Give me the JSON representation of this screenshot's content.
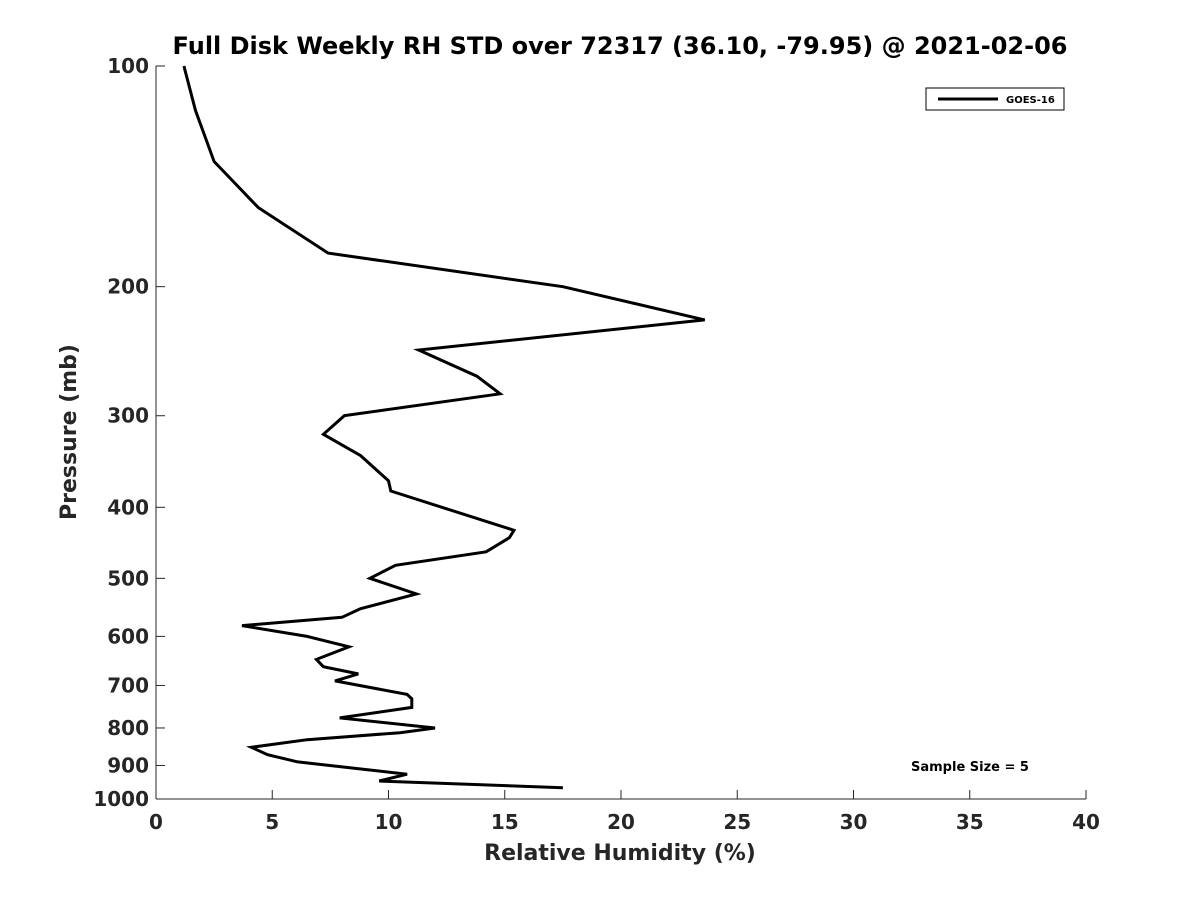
{
  "chart_data": {
    "type": "line",
    "title": "Full Disk Weekly RH STD over 72317 (36.10, -79.95) @ 2021-02-06",
    "xlabel": "Relative Humidity (%)",
    "ylabel": "Pressure (mb)",
    "xlim": [
      0,
      40
    ],
    "ylim": [
      100,
      1000
    ],
    "yscale": "log",
    "y_reversed": true,
    "xticks": [
      "0",
      "5",
      "10",
      "15",
      "20",
      "25",
      "30",
      "35",
      "40"
    ],
    "yticks": [
      "100",
      "200",
      "300",
      "400",
      "500",
      "600",
      "700",
      "800",
      "900",
      "1000"
    ],
    "grid": false,
    "legend_position": "top-right",
    "annotation": "Sample Size = 5",
    "series": [
      {
        "name": "GOES-16",
        "color": "#000000",
        "x": [
          1.2,
          1.7,
          2.5,
          4.4,
          7.4,
          17.5,
          23.6,
          11.3,
          13.8,
          14.8,
          8.1,
          7.2,
          8.8,
          10.0,
          10.1,
          15.4,
          15.2,
          14.2,
          10.3,
          9.2,
          11.2,
          8.8,
          8.0,
          3.7,
          6.5,
          8.3,
          6.9,
          7.2,
          8.7,
          7.7,
          10.8,
          11.0,
          11.0,
          7.9,
          12.0,
          10.5,
          6.5,
          4.1,
          4.8,
          6.1,
          9.1,
          10.8,
          9.6,
          17.5
        ],
        "y": [
          100,
          115,
          135,
          156,
          180,
          200,
          222,
          244,
          265,
          280,
          300,
          318,
          340,
          368,
          380,
          430,
          440,
          460,
          480,
          500,
          525,
          550,
          565,
          580,
          600,
          620,
          645,
          660,
          675,
          690,
          720,
          730,
          750,
          775,
          800,
          812,
          830,
          850,
          870,
          890,
          912,
          925,
          945,
          965
        ]
      }
    ]
  }
}
